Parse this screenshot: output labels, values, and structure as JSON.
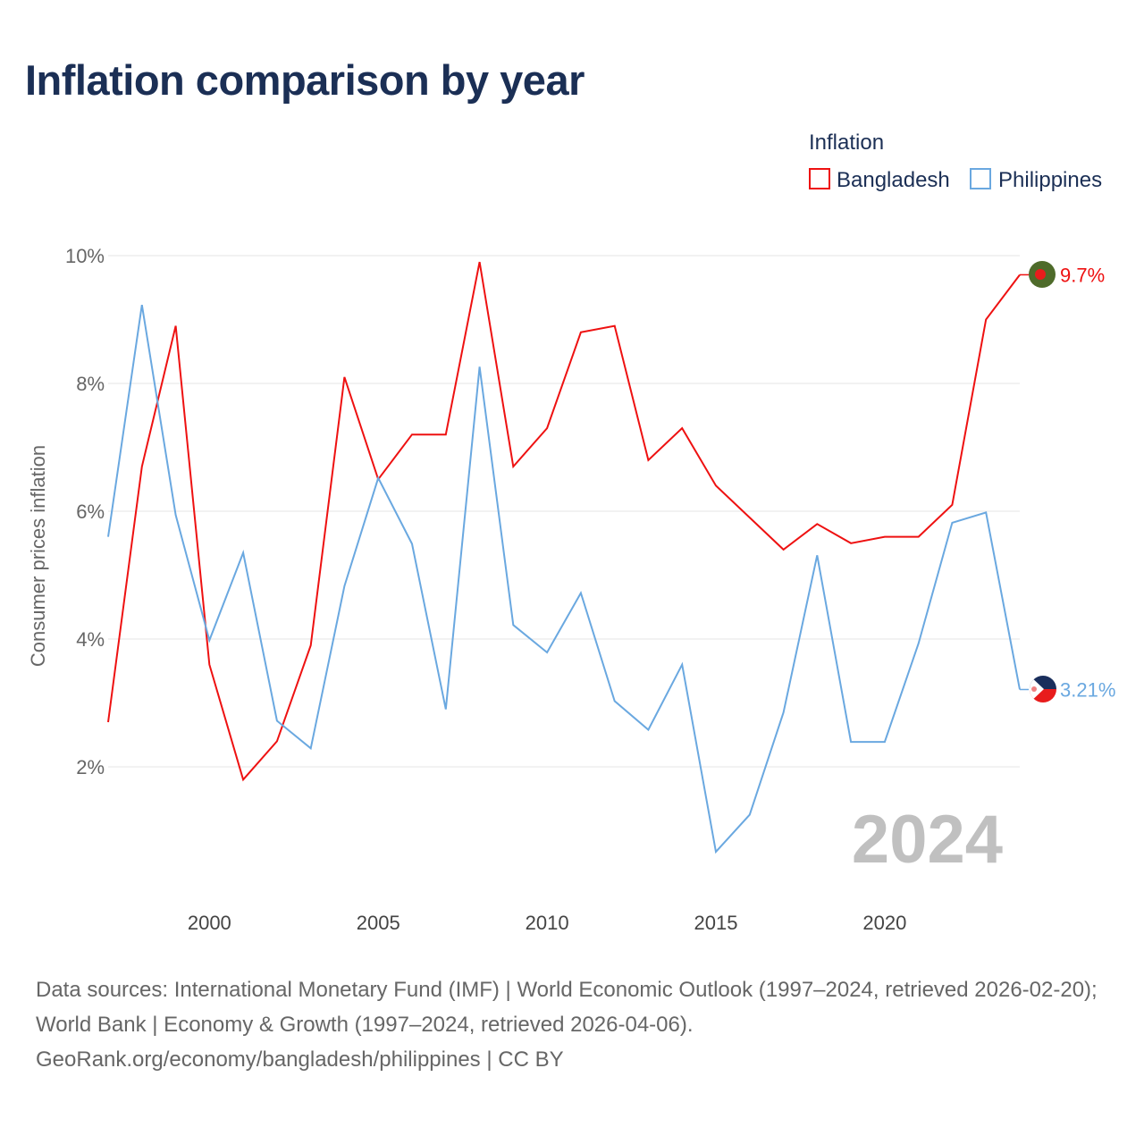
{
  "chart_data": {
    "type": "line",
    "title": "Inflation comparison by year",
    "ylabel": "Consumer prices inflation",
    "xlabel": "",
    "legend_title": "Inflation",
    "legend_position": "top-right",
    "x": [
      1997,
      1998,
      1999,
      2000,
      2001,
      2002,
      2003,
      2004,
      2005,
      2006,
      2007,
      2008,
      2009,
      2010,
      2011,
      2012,
      2013,
      2014,
      2015,
      2016,
      2017,
      2018,
      2019,
      2020,
      2021,
      2022,
      2023,
      2024
    ],
    "series": [
      {
        "name": "Bangladesh",
        "color": "#ee1111",
        "end_label": "9.7%",
        "flag": "bangladesh-flag",
        "values": [
          2.7,
          6.7,
          8.9,
          3.6,
          1.8,
          2.4,
          3.9,
          8.1,
          6.5,
          7.2,
          7.2,
          9.9,
          6.7,
          7.3,
          8.8,
          8.9,
          6.8,
          7.3,
          6.4,
          5.9,
          5.4,
          5.8,
          5.5,
          5.6,
          5.6,
          6.1,
          9.0,
          9.7
        ]
      },
      {
        "name": "Philippines",
        "color": "#6aa8e0",
        "end_label": "3.21%",
        "flag": "philippines-flag",
        "values": [
          5.6,
          9.23,
          5.94,
          3.98,
          5.35,
          2.72,
          2.29,
          4.83,
          6.52,
          5.49,
          2.9,
          8.26,
          4.22,
          3.79,
          4.72,
          3.03,
          2.58,
          3.6,
          0.67,
          1.25,
          2.85,
          5.31,
          2.39,
          2.39,
          3.93,
          5.82,
          5.98,
          3.21
        ]
      }
    ],
    "xlim": [
      1997,
      2024
    ],
    "ylim": [
      0,
      10
    ],
    "yticks": [
      2,
      4,
      6,
      8,
      10
    ],
    "ytick_labels": [
      "2%",
      "4%",
      "6%",
      "8%",
      "10%"
    ],
    "xticks": [
      2000,
      2005,
      2010,
      2015,
      2020
    ],
    "xtick_labels": [
      "2000",
      "2005",
      "2010",
      "2015",
      "2020"
    ],
    "grid": true,
    "year_watermark": "2024"
  },
  "footer": {
    "line1": "Data sources: International Monetary Fund (IMF) | World Economic Outlook (1997–2024, retrieved 2026-02-20); World Bank | Economy & Growth (1997–2024, retrieved 2026-04-06).",
    "line2": "GeoRank.org/economy/bangladesh/philippines | CC BY"
  }
}
